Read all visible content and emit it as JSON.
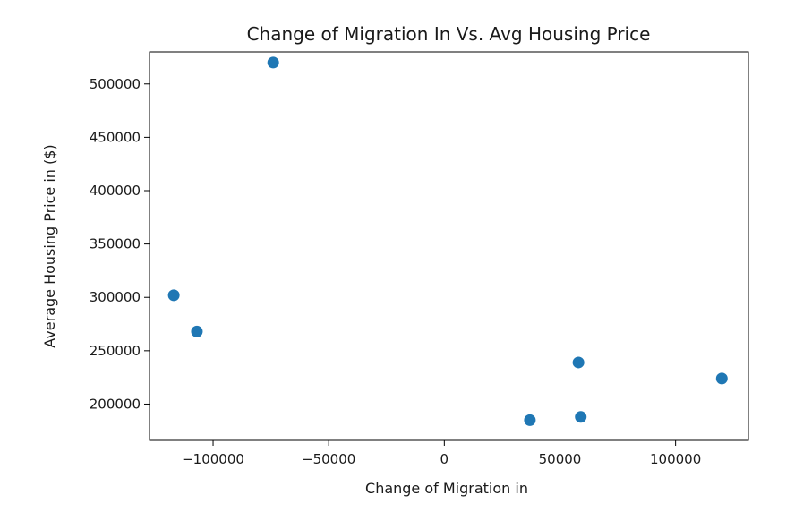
{
  "chart_data": {
    "type": "scatter",
    "title": "Change of Migration In Vs. Avg Housing Price",
    "xlabel": "Change of Migration in",
    "ylabel": "Average Housing Price in ($)",
    "xlim": [
      -127500,
      131500
    ],
    "ylim": [
      166000,
      530000
    ],
    "x_ticks": [
      -100000,
      -50000,
      0,
      50000,
      100000
    ],
    "x_tick_labels": [
      "−100000",
      "−50000",
      "0",
      "50000",
      "100000"
    ],
    "y_ticks": [
      200000,
      250000,
      300000,
      350000,
      400000,
      450000,
      500000
    ],
    "y_tick_labels": [
      "200000",
      "250000",
      "300000",
      "350000",
      "400000",
      "450000",
      "500000"
    ],
    "grid": false,
    "legend": "none",
    "marker_color": "#1f77b4",
    "series": [
      {
        "points": [
          {
            "x": -74000,
            "y": 520000
          },
          {
            "x": -117000,
            "y": 302000
          },
          {
            "x": -107000,
            "y": 268000
          },
          {
            "x": 58000,
            "y": 239000
          },
          {
            "x": 120000,
            "y": 224000
          },
          {
            "x": 59000,
            "y": 188000
          },
          {
            "x": 37000,
            "y": 185000
          }
        ]
      }
    ]
  }
}
